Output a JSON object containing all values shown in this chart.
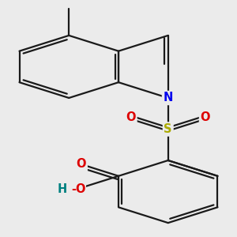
{
  "bg_color": "#ebebeb",
  "bond_color": "#1a1a1a",
  "bond_width": 1.6,
  "atom_labels": {
    "N": {
      "color": "#0000ee",
      "fontsize": 10.5,
      "fontweight": "bold"
    },
    "S": {
      "color": "#aaaa00",
      "fontsize": 10.5,
      "fontweight": "bold"
    },
    "O": {
      "color": "#dd0000",
      "fontsize": 10.5,
      "fontweight": "bold"
    },
    "H": {
      "color": "#008080",
      "fontsize": 10.5,
      "fontweight": "bold"
    }
  }
}
